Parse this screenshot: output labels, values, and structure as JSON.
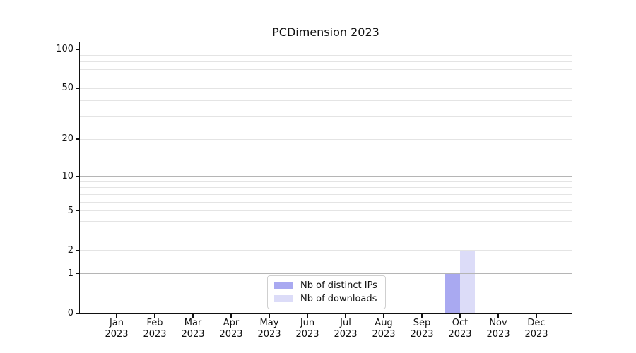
{
  "title": "PCDimension 2023",
  "chart_data": {
    "type": "bar",
    "title": "PCDimension 2023",
    "categories": [
      "Jan 2023",
      "Feb 2023",
      "Mar 2023",
      "Apr 2023",
      "May 2023",
      "Jun 2023",
      "Jul 2023",
      "Aug 2023",
      "Sep 2023",
      "Oct 2023",
      "Nov 2023",
      "Dec 2023"
    ],
    "series": [
      {
        "name": "Nb of distinct IPs",
        "color": "#a9a9f1",
        "values": [
          0,
          0,
          0,
          0,
          0,
          0,
          0,
          0,
          0,
          1,
          0,
          0
        ]
      },
      {
        "name": "Nb of downloads",
        "color": "#dcdcf8",
        "values": [
          0,
          0,
          0,
          0,
          0,
          0,
          0,
          0,
          0,
          2,
          0,
          0
        ]
      }
    ],
    "yscale": "log1p",
    "ylim": [
      0,
      113
    ],
    "ytick_values": [
      0,
      1,
      2,
      5,
      10,
      20,
      50,
      100
    ],
    "ytick_labels": [
      "0",
      "1",
      "2",
      "5",
      "10",
      "20",
      "50",
      "100"
    ],
    "grid": {
      "major_values": [
        1,
        10,
        100
      ],
      "minor_values": [
        2,
        3,
        4,
        5,
        6,
        7,
        8,
        9,
        20,
        30,
        40,
        50,
        60,
        70,
        80,
        90
      ],
      "major_color": "#b5b5b5",
      "minor_color": "#e4e4e4"
    },
    "legend_position": "lower center",
    "grid_on": true
  },
  "legend": {
    "items": [
      {
        "label": "Nb of distinct IPs",
        "color": "#a9a9f1"
      },
      {
        "label": "Nb of downloads",
        "color": "#dcdcf8"
      }
    ]
  },
  "colors": {
    "background": "#ffffff",
    "spine": "#111111",
    "text": "#111111",
    "bar_distinct_ips": "#a9a9f1",
    "bar_downloads": "#dcdcf8"
  }
}
